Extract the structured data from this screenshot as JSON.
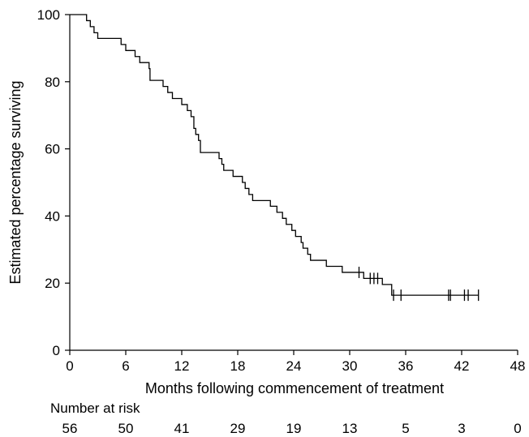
{
  "chart_data": {
    "type": "line",
    "xlabel": "Months following commencement of treatment",
    "ylabel": "Estimated percentage surviving",
    "xlim": [
      0,
      48
    ],
    "ylim": [
      0,
      100
    ],
    "x_ticks": [
      0,
      6,
      12,
      18,
      24,
      30,
      36,
      42,
      48
    ],
    "y_ticks": [
      0,
      20,
      40,
      60,
      80,
      100
    ],
    "grid": false,
    "series": [
      {
        "style": "step",
        "color": "#000000",
        "points": [
          [
            0,
            100
          ],
          [
            1.8,
            100
          ],
          [
            1.8,
            98.2
          ],
          [
            2.2,
            98.2
          ],
          [
            2.2,
            96.4
          ],
          [
            2.6,
            96.4
          ],
          [
            2.6,
            94.6
          ],
          [
            3.0,
            94.6
          ],
          [
            3.0,
            92.9
          ],
          [
            5.5,
            92.9
          ],
          [
            5.5,
            91.1
          ],
          [
            6.0,
            91.1
          ],
          [
            6.0,
            89.3
          ],
          [
            7.0,
            89.3
          ],
          [
            7.0,
            87.5
          ],
          [
            7.5,
            87.5
          ],
          [
            7.5,
            85.7
          ],
          [
            8.5,
            85.7
          ],
          [
            8.5,
            83.9
          ],
          [
            8.6,
            83.9
          ],
          [
            8.6,
            80.4
          ],
          [
            10.0,
            80.4
          ],
          [
            10.0,
            78.6
          ],
          [
            10.5,
            78.6
          ],
          [
            10.5,
            76.8
          ],
          [
            11.0,
            76.8
          ],
          [
            11.0,
            75.0
          ],
          [
            12.0,
            75.0
          ],
          [
            12.0,
            73.2
          ],
          [
            12.6,
            73.2
          ],
          [
            12.6,
            71.4
          ],
          [
            13.0,
            71.4
          ],
          [
            13.0,
            69.6
          ],
          [
            13.3,
            69.6
          ],
          [
            13.3,
            66.1
          ],
          [
            13.5,
            66.1
          ],
          [
            13.5,
            64.3
          ],
          [
            13.8,
            64.3
          ],
          [
            13.8,
            62.5
          ],
          [
            14.0,
            62.5
          ],
          [
            14.0,
            58.9
          ],
          [
            16.0,
            58.9
          ],
          [
            16.0,
            57.1
          ],
          [
            16.3,
            57.1
          ],
          [
            16.3,
            55.4
          ],
          [
            16.5,
            55.4
          ],
          [
            16.5,
            53.6
          ],
          [
            17.5,
            53.6
          ],
          [
            17.5,
            51.8
          ],
          [
            18.5,
            51.8
          ],
          [
            18.5,
            50.0
          ],
          [
            18.8,
            50.0
          ],
          [
            18.8,
            48.2
          ],
          [
            19.2,
            48.2
          ],
          [
            19.2,
            46.4
          ],
          [
            19.6,
            46.4
          ],
          [
            19.6,
            44.6
          ],
          [
            21.5,
            44.6
          ],
          [
            21.5,
            42.9
          ],
          [
            22.2,
            42.9
          ],
          [
            22.2,
            41.1
          ],
          [
            22.8,
            41.1
          ],
          [
            22.8,
            39.3
          ],
          [
            23.2,
            39.3
          ],
          [
            23.2,
            37.5
          ],
          [
            23.8,
            37.5
          ],
          [
            23.8,
            35.7
          ],
          [
            24.2,
            35.7
          ],
          [
            24.2,
            33.9
          ],
          [
            24.8,
            33.9
          ],
          [
            24.8,
            32.1
          ],
          [
            25.0,
            32.1
          ],
          [
            25.0,
            30.4
          ],
          [
            25.5,
            30.4
          ],
          [
            25.5,
            28.6
          ],
          [
            25.8,
            28.6
          ],
          [
            25.8,
            26.8
          ],
          [
            27.5,
            26.8
          ],
          [
            27.5,
            25.0
          ],
          [
            29.2,
            25.0
          ],
          [
            29.2,
            23.2
          ],
          [
            31.5,
            23.2
          ],
          [
            31.5,
            21.4
          ],
          [
            33.5,
            21.4
          ],
          [
            33.5,
            19.6
          ],
          [
            34.5,
            19.6
          ],
          [
            34.5,
            16.4
          ],
          [
            43.8,
            16.4
          ]
        ],
        "censor_marks": [
          31.0,
          32.2,
          32.6,
          33.0,
          34.7,
          35.5,
          40.6,
          40.8,
          42.3,
          42.7,
          43.8
        ]
      }
    ],
    "risk_table": {
      "label": "Number at  risk",
      "times": [
        0,
        6,
        12,
        18,
        24,
        30,
        36,
        42,
        48
      ],
      "counts": [
        "56",
        "50",
        "41",
        "29",
        "19",
        "13",
        "5",
        "3",
        "0"
      ]
    }
  }
}
